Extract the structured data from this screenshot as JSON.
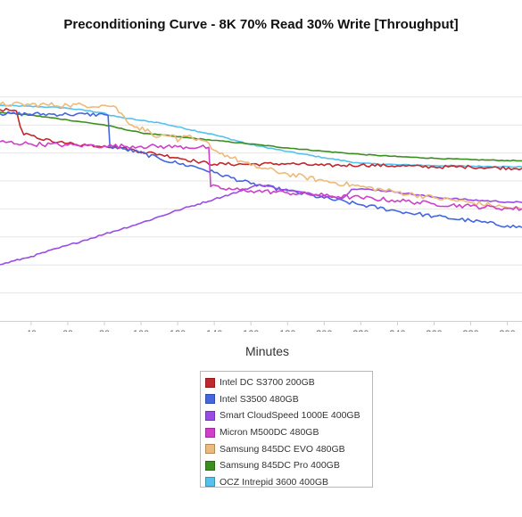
{
  "chart_data": {
    "type": "line",
    "title": "Preconditioning Curve - 8K 70% Read 30% Write [Throughput]",
    "xlabel": "Minutes",
    "ylabel": "",
    "xlim": [
      23,
      308
    ],
    "ylim": [
      0,
      100
    ],
    "x_ticks": [
      40,
      60,
      80,
      100,
      120,
      140,
      160,
      180,
      200,
      220,
      240,
      260,
      280,
      300
    ],
    "y_gridlines": [
      10,
      20,
      30,
      40,
      50,
      60,
      70,
      80
    ],
    "grid": true,
    "legend_position": "bottom",
    "series": [
      {
        "name": "Intel DC S3700 200GB",
        "color": "#c0282d",
        "noise": 0.6,
        "points": [
          [
            23,
            75.5
          ],
          [
            28,
            75.3
          ],
          [
            32,
            75
          ],
          [
            34,
            69.5
          ],
          [
            36,
            66.5
          ],
          [
            40,
            66.3
          ],
          [
            45,
            64.9
          ],
          [
            50,
            64.8
          ],
          [
            55,
            63.9
          ],
          [
            60,
            63.4
          ],
          [
            70,
            62.8
          ],
          [
            80,
            62.6
          ],
          [
            90,
            61.8
          ],
          [
            100,
            60.5
          ],
          [
            110,
            59.5
          ],
          [
            120,
            58.3
          ],
          [
            130,
            57
          ],
          [
            140,
            56
          ],
          [
            160,
            56
          ],
          [
            180,
            56.2
          ],
          [
            200,
            55.5
          ],
          [
            220,
            55.7
          ],
          [
            240,
            55.4
          ],
          [
            260,
            55
          ],
          [
            280,
            55
          ],
          [
            308,
            54.5
          ]
        ]
      },
      {
        "name": "Intel S3500 480GB",
        "color": "#4466e0",
        "noise": 0.7,
        "points": [
          [
            23,
            74
          ],
          [
            60,
            73.8
          ],
          [
            80,
            73.7
          ],
          [
            82,
            73.5
          ],
          [
            83,
            62.3
          ],
          [
            90,
            61.5
          ],
          [
            100,
            60
          ],
          [
            110,
            58
          ],
          [
            120,
            56.3
          ],
          [
            130,
            55
          ],
          [
            140,
            53
          ],
          [
            160,
            49
          ],
          [
            180,
            46.5
          ],
          [
            200,
            43.9
          ],
          [
            220,
            41.5
          ],
          [
            240,
            39.2
          ],
          [
            260,
            37.4
          ],
          [
            280,
            35.8
          ],
          [
            300,
            34
          ],
          [
            308,
            33.4
          ]
        ]
      },
      {
        "name": "Smart CloudSpeed 1000E 400GB",
        "color": "#9a4ce6",
        "noise": 0.3,
        "points": [
          [
            23,
            20.1
          ],
          [
            40,
            23
          ],
          [
            60,
            27
          ],
          [
            80,
            31
          ],
          [
            100,
            35
          ],
          [
            120,
            39.5
          ],
          [
            140,
            43.5
          ],
          [
            155,
            46.5
          ],
          [
            163,
            48.5
          ],
          [
            165,
            48.7
          ],
          [
            175,
            47.3
          ],
          [
            190,
            45.7
          ],
          [
            200,
            44.7
          ],
          [
            210,
            43.8
          ],
          [
            215,
            47
          ],
          [
            225,
            47
          ],
          [
            240,
            46
          ],
          [
            260,
            44.2
          ],
          [
            280,
            43.2
          ],
          [
            300,
            42.5
          ],
          [
            308,
            42.3
          ]
        ]
      },
      {
        "name": "Micron M500DC 480GB",
        "color": "#d03ecc",
        "noise": 0.8,
        "points": [
          [
            23,
            64
          ],
          [
            40,
            63.2
          ],
          [
            60,
            62.8
          ],
          [
            80,
            62.5
          ],
          [
            100,
            62.4
          ],
          [
            120,
            62.2
          ],
          [
            137,
            62
          ],
          [
            138,
            48
          ],
          [
            145,
            47.2
          ],
          [
            160,
            46.5
          ],
          [
            180,
            45.8
          ],
          [
            200,
            44.8
          ],
          [
            220,
            44
          ],
          [
            240,
            43
          ],
          [
            260,
            41.8
          ],
          [
            280,
            41
          ],
          [
            300,
            40.2
          ],
          [
            308,
            40
          ]
        ]
      },
      {
        "name": "Samsung 845DC EVO 480GB",
        "color": "#ecba7a",
        "noise": 0.9,
        "points": [
          [
            23,
            77.4
          ],
          [
            60,
            77.1
          ],
          [
            80,
            77
          ],
          [
            85,
            76.8
          ],
          [
            95,
            70
          ],
          [
            105,
            67.5
          ],
          [
            110,
            65.8
          ],
          [
            117,
            66.5
          ],
          [
            120,
            64
          ],
          [
            125,
            66
          ],
          [
            130,
            64.5
          ],
          [
            137,
            63.5
          ],
          [
            140,
            61
          ],
          [
            150,
            58.2
          ],
          [
            160,
            55.5
          ],
          [
            180,
            52.5
          ],
          [
            200,
            50
          ],
          [
            220,
            48
          ],
          [
            240,
            46
          ],
          [
            260,
            44
          ],
          [
            280,
            42.3
          ],
          [
            300,
            40.5
          ],
          [
            308,
            40
          ]
        ]
      },
      {
        "name": "Samsung 845DC Pro 400GB",
        "color": "#3b8f1e",
        "noise": 0.15,
        "points": [
          [
            23,
            74.5
          ],
          [
            40,
            73.5
          ],
          [
            60,
            71.8
          ],
          [
            80,
            70
          ],
          [
            100,
            67.2
          ],
          [
            120,
            65.8
          ],
          [
            140,
            64.5
          ],
          [
            160,
            63.2
          ],
          [
            180,
            61.8
          ],
          [
            200,
            60.6
          ],
          [
            220,
            59.5
          ],
          [
            240,
            58.7
          ],
          [
            260,
            58.1
          ],
          [
            280,
            57.6
          ],
          [
            300,
            57.3
          ],
          [
            308,
            57.2
          ]
        ]
      },
      {
        "name": "OCZ Intrepid 3600 400GB",
        "color": "#55c2ee",
        "noise": 0.2,
        "points": [
          [
            23,
            77
          ],
          [
            50,
            76.4
          ],
          [
            60,
            76
          ],
          [
            80,
            74.3
          ],
          [
            82,
            73.5
          ],
          [
            90,
            72.6
          ],
          [
            100,
            71.6
          ],
          [
            110,
            70.8
          ],
          [
            120,
            69.3
          ],
          [
            140,
            66.5
          ],
          [
            160,
            63
          ],
          [
            180,
            60.5
          ],
          [
            200,
            58.3
          ],
          [
            220,
            56.3
          ],
          [
            240,
            55.8
          ],
          [
            260,
            55.5
          ],
          [
            280,
            55.3
          ],
          [
            308,
            55
          ]
        ]
      }
    ]
  }
}
